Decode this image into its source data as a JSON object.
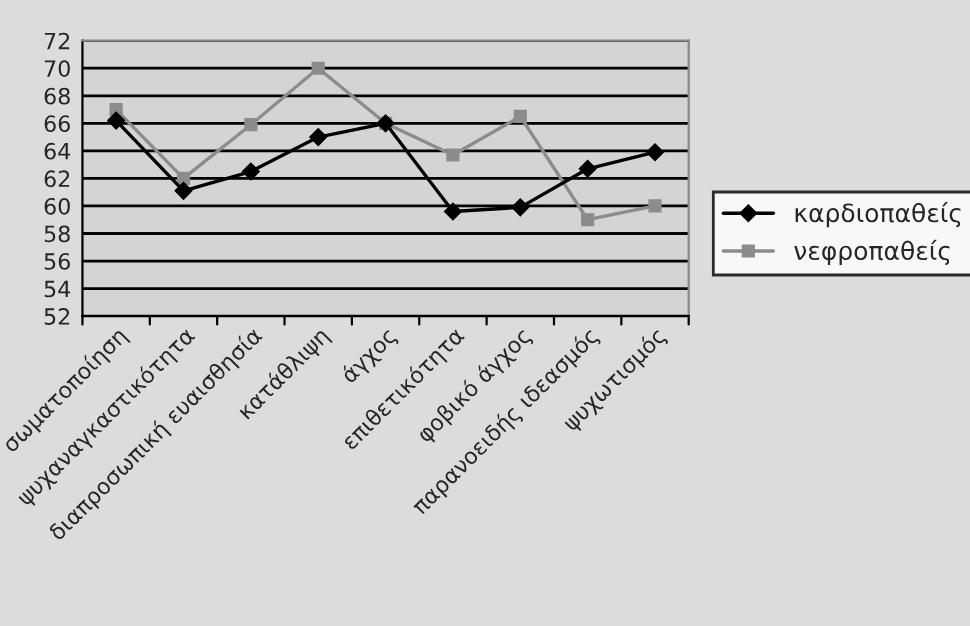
{
  "chart_data": {
    "type": "line",
    "categories": [
      "σωματοποίηση",
      "ψυχαναγκαστικότητα",
      "διαπροσωπική ευαισθησία",
      "κατάθλιψη",
      "άγχος",
      "επιθετικότητα",
      "φοβικό άγχος",
      "παρανοειδής ιδεασμός",
      "ψυχωτισμός"
    ],
    "series": [
      {
        "name": "καρδιοπαθείς",
        "color": "#000000",
        "marker": "diamond",
        "values": [
          66.2,
          61.1,
          62.5,
          65,
          66,
          59.6,
          59.9,
          62.7,
          63.9
        ]
      },
      {
        "name": "νεφροπαθείς",
        "color": "#8c8c8c",
        "marker": "square",
        "values": [
          67,
          62,
          65.9,
          70,
          66,
          63.7,
          66.5,
          59,
          60
        ]
      }
    ],
    "ylim": [
      52,
      72
    ],
    "yticks": [
      52,
      54,
      56,
      58,
      60,
      62,
      64,
      66,
      68,
      70,
      72
    ],
    "grid": "y",
    "legend": "right"
  }
}
